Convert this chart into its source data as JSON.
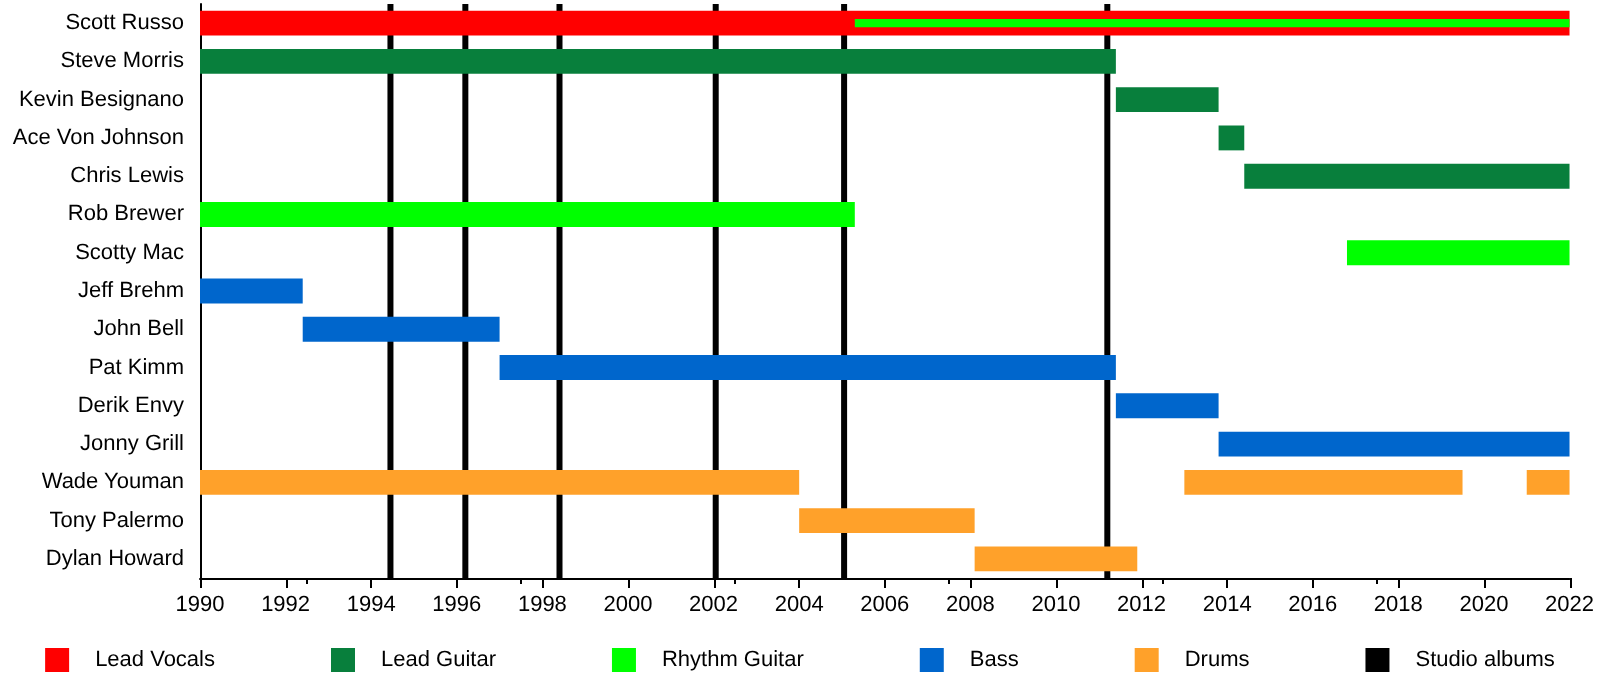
{
  "chart_data": {
    "type": "bar",
    "orientation": "horizontal",
    "categories": [
      "Scott Russo",
      "Steve Morris",
      "Kevin Besignano",
      "Ace Von Johnson",
      "Chris Lewis",
      "Rob Brewer",
      "Scotty Mac",
      "Jeff Brehm",
      "John Bell",
      "Pat Kimm",
      "Derik Envy",
      "Jonny Grill",
      "Wade Youman",
      "Tony Palermo",
      "Dylan Howard"
    ],
    "series": [
      {
        "name": "Lead Vocals",
        "color": "#ff0000",
        "values": [
          32,
          null,
          null,
          null,
          null,
          null,
          null,
          null,
          null,
          null,
          null,
          null,
          null,
          null,
          null
        ],
        "base": [
          1990,
          null,
          null,
          null,
          null,
          null,
          null,
          null,
          null,
          null,
          null,
          null,
          null,
          null,
          null
        ]
      },
      {
        "name": "Lead Guitar",
        "color": "#087f3c",
        "values": [
          null,
          21.4,
          2.4,
          0.6,
          7.6,
          null,
          null,
          null,
          null,
          null,
          null,
          null,
          null,
          null,
          null
        ],
        "base": [
          null,
          1990,
          2011.4,
          2013.8,
          2014.4,
          null,
          null,
          null,
          null,
          null,
          null,
          null,
          null,
          null,
          null
        ]
      },
      {
        "name": "Rhythm Guitar",
        "color": "#00ff00",
        "values": [
          16.7,
          null,
          null,
          null,
          null,
          15.3,
          5.2,
          null,
          null,
          null,
          null,
          null,
          null,
          null,
          null
        ],
        "base": [
          2005.3,
          null,
          null,
          null,
          null,
          1990,
          2016.8,
          null,
          null,
          null,
          null,
          null,
          null,
          null,
          null
        ]
      },
      {
        "name": "Bass",
        "color": "#0066cc",
        "values": [
          null,
          null,
          null,
          null,
          null,
          null,
          null,
          2.4,
          4.6,
          14.4,
          2.4,
          8.2,
          null,
          null,
          null
        ],
        "base": [
          null,
          null,
          null,
          null,
          null,
          null,
          null,
          1990,
          1992.4,
          1997,
          2011.4,
          2013.8,
          null,
          null,
          null
        ]
      },
      {
        "name": "Drums",
        "color": "#ffa12a",
        "values": [
          null,
          null,
          null,
          null,
          null,
          null,
          null,
          null,
          null,
          null,
          null,
          null,
          14,
          4.1,
          3.8
        ],
        "base": [
          null,
          null,
          null,
          null,
          null,
          null,
          null,
          null,
          null,
          null,
          null,
          null,
          1990,
          2004,
          2008.1
        ]
      },
      {
        "color": "#ffa12a",
        "values": [
          null,
          null,
          null,
          null,
          null,
          null,
          null,
          null,
          null,
          null,
          null,
          null,
          6.5,
          null,
          null
        ],
        "base": [
          null,
          null,
          null,
          null,
          null,
          null,
          null,
          null,
          null,
          null,
          null,
          null,
          2013,
          null,
          null
        ]
      },
      {
        "color": "#ffa12a",
        "values": [
          null,
          null,
          null,
          null,
          null,
          null,
          null,
          null,
          null,
          null,
          null,
          null,
          1,
          null,
          null
        ],
        "base": [
          null,
          null,
          null,
          null,
          null,
          null,
          null,
          null,
          null,
          null,
          null,
          null,
          2021,
          null,
          null
        ]
      }
    ],
    "xlim": [
      1990,
      2022
    ],
    "xticks": [
      1990,
      1992,
      1994,
      1996,
      1998,
      2000,
      2002,
      2004,
      2006,
      2008,
      2010,
      2012,
      2014,
      2016,
      2018,
      2020,
      2022
    ],
    "ref_lines": [
      {
        "axis": "x",
        "value": 1994.45,
        "label": "Studio albums",
        "color": "#000000"
      },
      {
        "axis": "x",
        "value": 1996.2,
        "label": null,
        "color": "#000000"
      },
      {
        "axis": "x",
        "value": 1998.4,
        "label": null,
        "color": "#000000"
      },
      {
        "axis": "x",
        "value": 2002.05,
        "label": null,
        "color": "#000000"
      },
      {
        "axis": "x",
        "value": 2005.05,
        "label": null,
        "color": "#000000"
      },
      {
        "axis": "x",
        "value": 2011.2,
        "label": null,
        "color": "#000000"
      }
    ],
    "grid": false,
    "legend": "bottom"
  }
}
